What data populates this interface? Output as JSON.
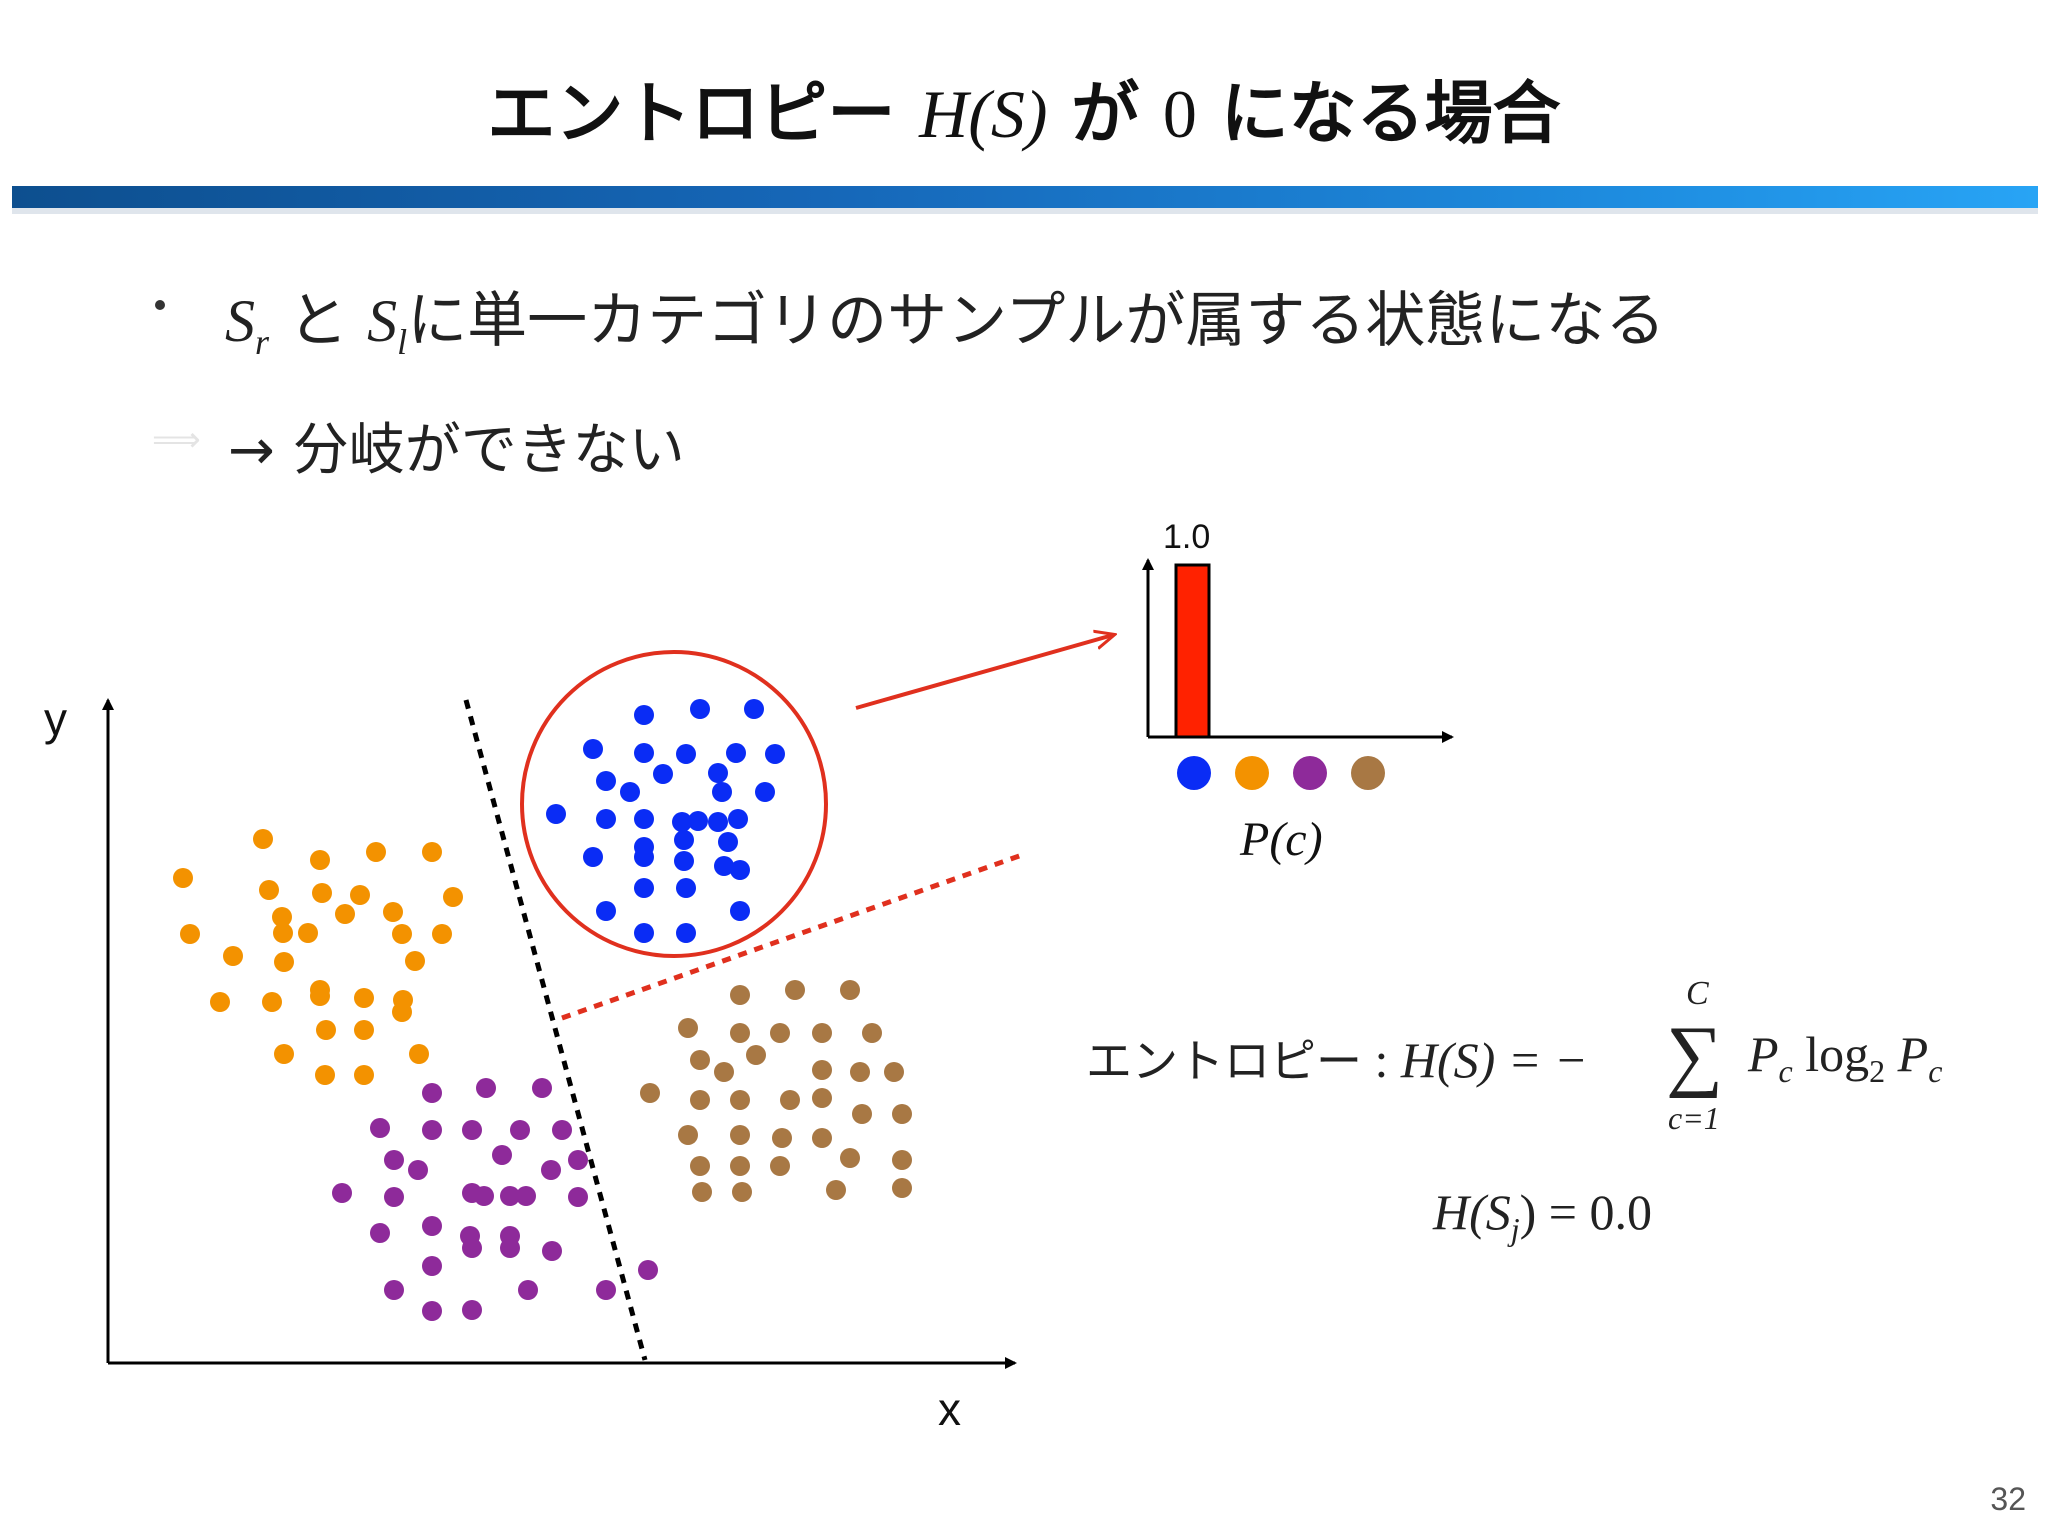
{
  "slide": {
    "title_prefix": "エントロピー",
    "title_math": "H(S)",
    "title_mid": "が",
    "title_zero": "0",
    "title_suffix": "になる場合",
    "page_number": "32"
  },
  "bullet": {
    "sr": "S",
    "sr_sub": "r",
    "to": "と",
    "sl": "S",
    "sl_sub": "l",
    "text": "に単一カテゴリのサンプルが属する状態になる"
  },
  "sub_bullet": {
    "arrow": "→",
    "text": "分岐ができない"
  },
  "scatter": {
    "x_label": "x",
    "y_label": "y"
  },
  "bar_chart": {
    "value_label": "1.0",
    "axis_label": "P(c)",
    "categories": [
      "blue",
      "orange",
      "purple",
      "brown"
    ],
    "colors": {
      "blue": "#0a2cf5",
      "orange": "#f39200",
      "purple": "#8e2a9a",
      "brown": "#a87844",
      "bar": "#ff2200"
    }
  },
  "formulas": {
    "entropy_label": "エントロピー",
    "entropy_colon": ":",
    "entropy_lhs": "H(S) = −",
    "sum_upper": "C",
    "sum_lower": "c=1",
    "entropy_rhs": "P",
    "pc_sub": "c",
    "log": "log",
    "log_sub": "2",
    "pc2": "P",
    "pc2_sub": "c",
    "hsj": "H(S",
    "hsj_sub": "j",
    "hsj_rhs": ") = 0.0"
  },
  "chart_data": {
    "type": "bar",
    "categories": [
      "blue",
      "orange",
      "purple",
      "brown"
    ],
    "values": [
      1.0,
      0.0,
      0.0,
      0.0
    ],
    "xlabel": "P(c)",
    "ylim": [
      0,
      1.0
    ]
  }
}
